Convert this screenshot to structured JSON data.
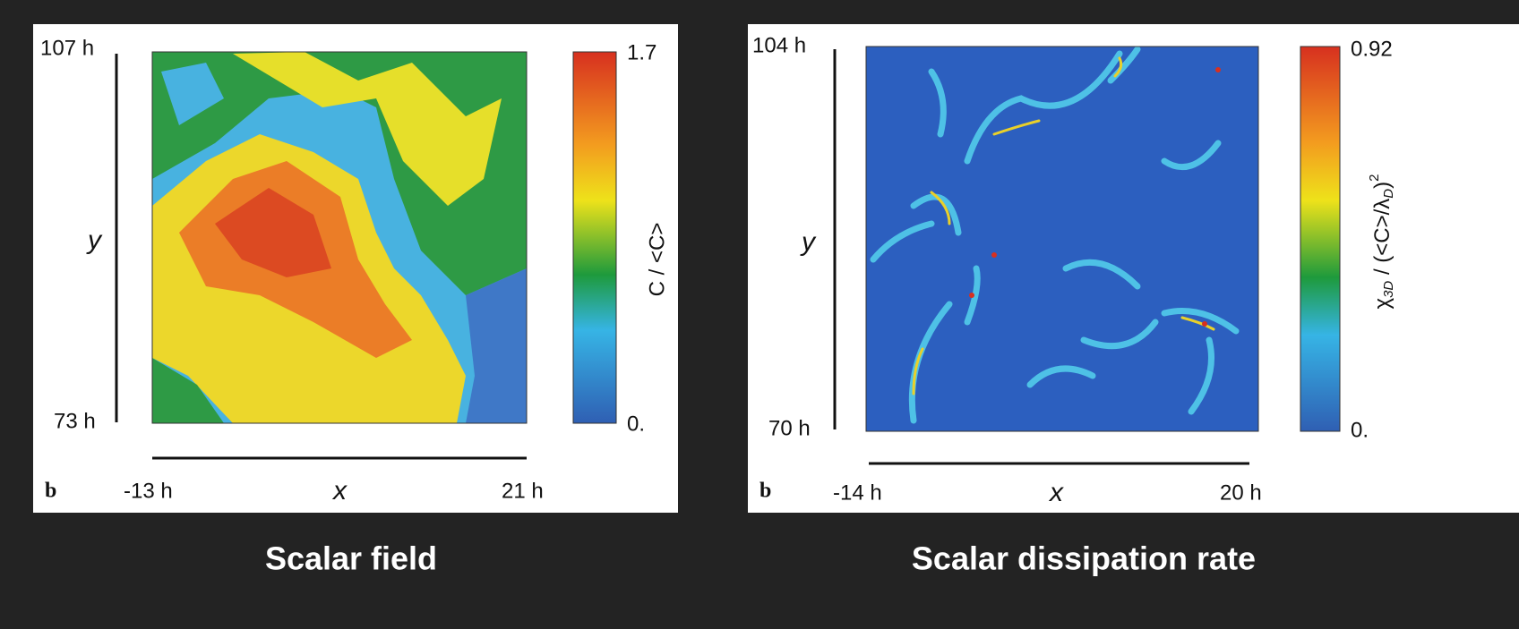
{
  "panels": [
    {
      "y_top": "107 h",
      "y_bottom": "73 h",
      "y_label": "y",
      "x_left": "-13 h",
      "x_right": "21 h",
      "x_label": "x",
      "panel_letter": "b",
      "colorbar_max": "1.7",
      "colorbar_min": "0.",
      "colorbar_label": "C / <C>",
      "caption": "Scalar field"
    },
    {
      "y_top": "104 h",
      "y_bottom": "70 h",
      "y_label": "y",
      "x_left": "-14 h",
      "x_right": "20 h",
      "x_label": "x",
      "panel_letter": "b",
      "colorbar_max": "0.92",
      "colorbar_min": "0.",
      "colorbar_label_parts": [
        "χ",
        "3D",
        " / (<C>/λ",
        "D",
        ")",
        "2"
      ],
      "caption": "Scalar dissipation rate"
    }
  ]
}
